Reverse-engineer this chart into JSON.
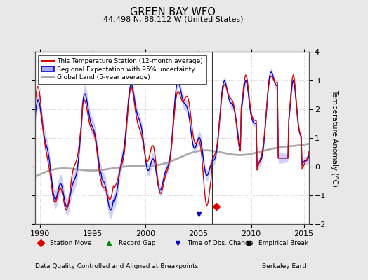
{
  "title": "GREEN BAY WFO",
  "subtitle": "44.498 N, 88.112 W (United States)",
  "ylabel": "Temperature Anomaly (°C)",
  "xlabel_bottom": "Data Quality Controlled and Aligned at Breakpoints",
  "xlabel_bottom_right": "Berkeley Earth",
  "xmin": 1989.5,
  "xmax": 2015.5,
  "ymin": -2.0,
  "ymax": 4.0,
  "yticks": [
    -2,
    -1,
    0,
    1,
    2,
    3,
    4
  ],
  "xticks": [
    1990,
    1995,
    2000,
    2005,
    2010,
    2015
  ],
  "legend_entries": [
    "This Temperature Station (12-month average)",
    "Regional Expectation with 95% uncertainty",
    "Global Land (5-year average)"
  ],
  "station_move_year": 2006.7,
  "station_move_value": -1.4,
  "time_of_obs_change_year": 2005.0,
  "time_of_obs_change_value": -1.65,
  "bg_color": "#e8e8e8",
  "plot_bg_color": "#ffffff",
  "red_line_color": "#dd0000",
  "blue_line_color": "#0000cc",
  "blue_fill_color": "#aaaaee",
  "gray_line_color": "#aaaaaa",
  "grid_color": "#cccccc"
}
